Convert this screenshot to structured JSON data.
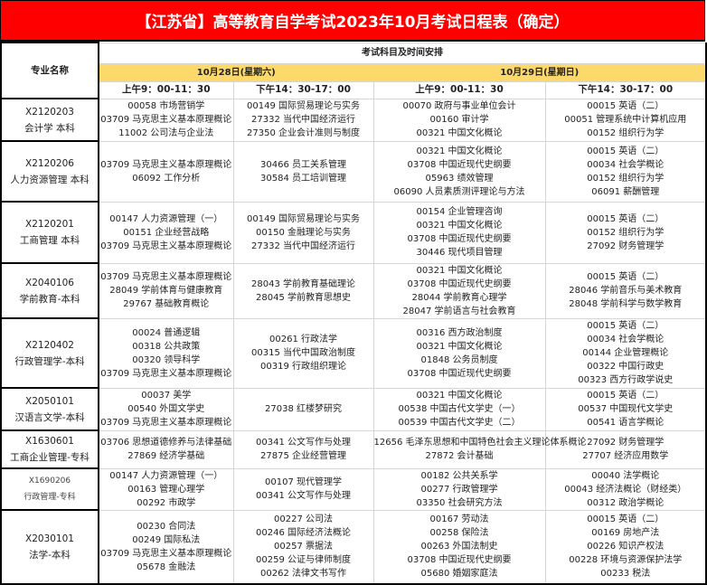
{
  "title": "【江苏省】高等教育自学考试2023年10月考试日程表（确定）",
  "header": {
    "major_col": "专业名称",
    "group": "考试科目及时间安排",
    "dates": [
      "10月28日(星期六)",
      "10月29日(星期日)"
    ],
    "times": [
      "上午9：00-11：30",
      "下午14：30-17：00",
      "上午9：00-11：30",
      "下午14：30-17：00"
    ]
  },
  "rows": [
    {
      "code": "X2120203",
      "name": "会计学 本科",
      "cells": [
        [
          "00058 市场营销学",
          "03709 马克思主义基本原理概论",
          "11002 公司法与企业法"
        ],
        [
          "00149 国际贸易理论与实务",
          "27332 当代中国经济运行",
          "27350 企业会计准则与制度"
        ],
        [
          "00070 政府与事业单位会计",
          "00160 审计学",
          "00321 中国文化概论"
        ],
        [
          "00015 英语（二）",
          "00051 管理系统中计算机应用",
          "00152 组织行为学"
        ]
      ]
    },
    {
      "code": "X2120206",
      "name": "人力资源管理 本科",
      "cells": [
        [
          "03709 马克思主义基本原理概论",
          "06092 工作分析"
        ],
        [
          "30466 员工关系管理",
          "30584 员工培训管理"
        ],
        [
          "00321 中国文化概论",
          "03708 中国近现代史纲要",
          "05963 绩效管理",
          "06090 人员素质测评理论与方法"
        ],
        [
          "00015 英语（二）",
          "00034 社会学概论",
          "00152 组织行为学",
          "06091 薪酬管理"
        ]
      ]
    },
    {
      "code": "X2120201",
      "name": "工商管理 本科",
      "cells": [
        [
          "00147 人力资源管理（一）",
          "00151 企业经营战略",
          "03709 马克思主义基本原理概论"
        ],
        [
          "00149 国际贸易理论与实务",
          "00150 金融理论与实务",
          "27332 当代中国经济运行"
        ],
        [
          "00154 企业管理咨询",
          "00321 中国文化概论",
          "03708 中国近现代史纲要",
          "30446 现代项目管理"
        ],
        [
          "00015 英语（二）",
          "00152 组织行为学",
          "27092 财务管理学"
        ]
      ]
    },
    {
      "code": "X2040106",
      "name": "学前教育-本科",
      "cells": [
        [
          "03709 马克思主义基本原理概论",
          "28049 学前体育与健康教育",
          "29767 基础教育概论"
        ],
        [
          "28043 学前教育基础理论",
          "28045 学前教育思想史"
        ],
        [
          "00321 中国文化概论",
          "03708 中国近现代史纲要",
          "28044 学前教育心理学",
          "28047 学前语言与社会教育"
        ],
        [
          "00015 英语（二）",
          "28046 学前音乐与美术教育",
          "28048 学前科学与数学教育"
        ]
      ]
    },
    {
      "code": "X2120402",
      "name": "行政管理学-本科",
      "cells": [
        [
          "00024 普通逻辑",
          "00318 公共政策",
          "00320 领导科学",
          "03709 马克思主义基本原理概论"
        ],
        [
          "00261 行政法学",
          "00315 当代中国政治制度",
          "00319 行政组织理论"
        ],
        [
          "00316 西方政治制度",
          "00321 中国文化概论",
          "01848 公务员制度",
          "03708 中国近现代史纲要"
        ],
        [
          "00015 英语（二）",
          "00034 社会学概论",
          "00144 企业管理概论",
          "00322 中国行政史",
          "00323 西方行政学说史"
        ]
      ]
    },
    {
      "code": "X2050101",
      "name": "汉语言文学-本科",
      "cells": [
        [
          "00037 美学",
          "00540 外国文学史",
          "03709 马克思主义基本原理概论"
        ],
        [
          "27038 红楼梦研究"
        ],
        [
          "00321 中国文化概论",
          "00538 中国古代文学史（一）",
          "00539 中国古代文学史（二）"
        ],
        [
          "00015 英语（二）",
          "00537 中国现代文学史",
          "00541 语言学概论"
        ]
      ]
    },
    {
      "code": "X1630601",
      "name": "工商企业管理-专科",
      "cells": [
        [
          "03706 思想道德修养与法律基础",
          "27869 经济学基础"
        ],
        [
          "00341 公文写作与处理",
          "27875 企业经营管理"
        ],
        [
          "12656 毛泽东思想和中国特色社会主义理论体系概论",
          "27872 会计基础"
        ],
        [
          "27092 财务管理学",
          "27707 经济应用数学"
        ]
      ]
    },
    {
      "code": "X1690206",
      "name": "行政管理-专科",
      "small": true,
      "cells": [
        [
          "00147 人力资源管理（一）",
          "00163 管理心理学",
          "00292 市政学"
        ],
        [
          "00107 现代管理学",
          "00341 公文写作与处理"
        ],
        [
          "00182 公共关系学",
          "00277 行政管理学",
          "03350 社会研究方法"
        ],
        [
          "00040 法学概论",
          "00043 经济法概论（财经类）",
          "00312 政治学概论"
        ]
      ]
    },
    {
      "code": "X2030101",
      "name": "法学-本科",
      "cells": [
        [
          "00230 合同法",
          "00249 国际私法",
          "03709 马克思主义基本原理概论",
          "05678 金融法"
        ],
        [
          "00227 公司法",
          "00246 国际经济法概论",
          "00257 票据法",
          "00259 公证与律师制度",
          "00262 法律文书写作"
        ],
        [
          "00167 劳动法",
          "00258 保险法",
          "00263 外国法制史",
          "03708 中国近现代史纲要",
          "05680 婚姻家庭法"
        ],
        [
          "00015 英语（二）",
          "00169 房地产法",
          "00226 知识产权法",
          "00228 环境与资源保护法学",
          "00233 税法"
        ]
      ]
    }
  ],
  "colors": {
    "title_bg": "#ff0000",
    "date_bg": "#fdd86a"
  }
}
